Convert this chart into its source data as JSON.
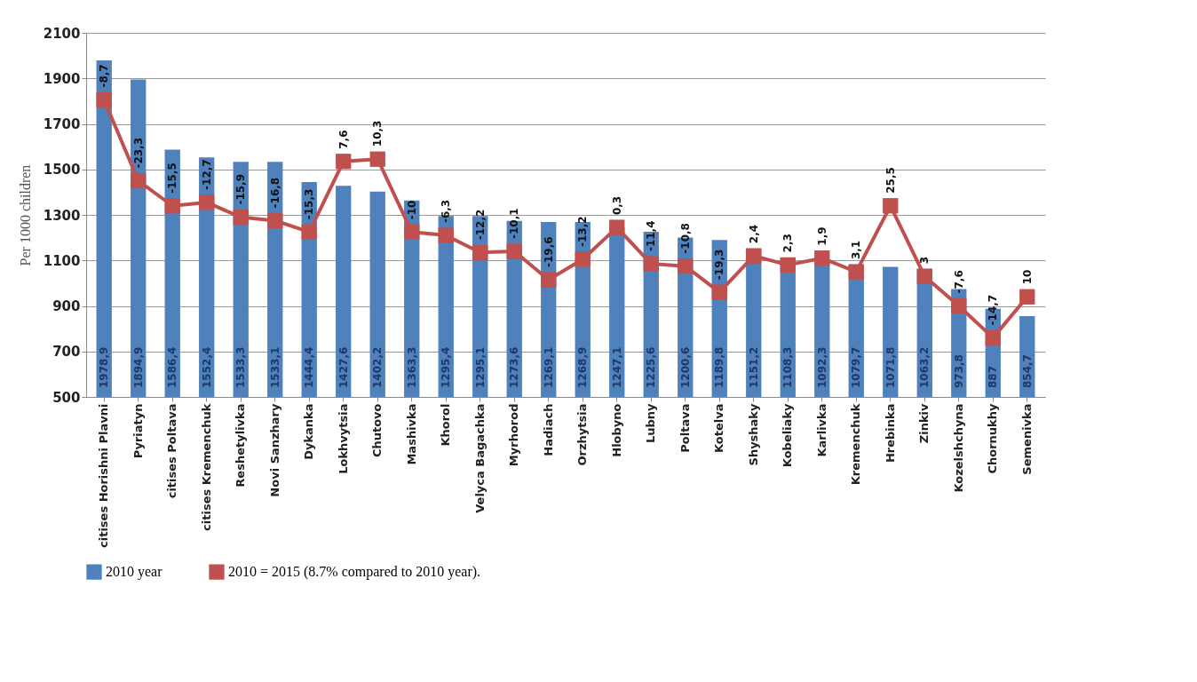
{
  "chart_data": {
    "type": "bar",
    "ylabel": "Per 1000 children",
    "categories": [
      "citises Horishni Plavni",
      "Pyriatyn",
      "citises Poltava",
      "citises Kremenchuk",
      "Reshetylivka",
      "Novi Sanzhary",
      "Dykanka",
      "Lokhvytsia",
      "Chutovo",
      "Mashivka",
      "Khorol",
      "Velyca Bagachka",
      "Myrhorod",
      "Hadiach",
      "Orzhytsia",
      "Hlobyno",
      "Lubny",
      "Poltava",
      "Kotelva",
      "Shyshaky",
      "Kobeliaky",
      "Karlivka",
      "Kremenchuk",
      "Hrebinka",
      "Zinkiv",
      "Kozelshchyna",
      "Chornukhy",
      "Semenivka"
    ],
    "series": [
      {
        "name": "2010 year",
        "color": "#4f81bd",
        "values": [
          1978.9,
          1894.9,
          1586.4,
          1552.4,
          1533.3,
          1533.1,
          1444.4,
          1427.6,
          1402.2,
          1363.3,
          1295.4,
          1295.1,
          1273.6,
          1269.1,
          1268.9,
          1247.1,
          1225.6,
          1200.6,
          1189.8,
          1151.2,
          1108.3,
          1092.3,
          1079.7,
          1071.8,
          1063.2,
          973.8,
          887,
          854.7
        ],
        "value_labels": [
          "1978,9",
          "1894,9",
          "1586,4",
          "1552,4",
          "1533,3",
          "1533,1",
          "1444,4",
          "1427,6",
          "1402,2",
          "1363,3",
          "1295,4",
          "1295,1",
          "1273,6",
          "1269,1",
          "1268,9",
          "1247,1",
          "1225,6",
          "1200,6",
          "1189,8",
          "1151,2",
          "1108,3",
          "1092,3",
          "1079,7",
          "1071,8",
          "1063,2",
          "973,8",
          "887",
          "854,7"
        ]
      },
      {
        "name": "2010 = 2015 (8.7% compared to 2010 year).",
        "type": "line",
        "color": "#c0504d",
        "marker": "square",
        "values": [
          1805,
          1450,
          1340,
          1355,
          1290,
          1275,
          1225,
          1535,
          1545,
          1225,
          1210,
          1135,
          1140,
          1015,
          1105,
          1245,
          1085,
          1075,
          960,
          1120,
          1080,
          1110,
          1050,
          1340,
          1030,
          900,
          760,
          940
        ]
      }
    ],
    "annotations": [
      {
        "text": "-8,7",
        "x": "citises Horishni Plavni",
        "y": 1805
      },
      {
        "text": "-23,3",
        "x": "Pyriatyn",
        "y": 1450
      },
      {
        "text": "-15,5",
        "x": "citises Poltava",
        "y": 1340
      },
      {
        "text": "-12,7",
        "x": "citises Kremenchuk",
        "y": 1355
      },
      {
        "text": "-15,9",
        "x": "Reshetylivka",
        "y": 1290
      },
      {
        "text": "-16,8",
        "x": "Novi Sanzhary",
        "y": 1275
      },
      {
        "text": "-15,3",
        "x": "Dykanka",
        "y": 1225
      },
      {
        "text": "7,6",
        "x": "Lokhvytsia",
        "y": 1535
      },
      {
        "text": "10,3",
        "x": "Chutovo",
        "y": 1545
      },
      {
        "text": "-10",
        "x": "Mashivka",
        "y": 1225
      },
      {
        "text": "-6,3",
        "x": "Khorol",
        "y": 1210
      },
      {
        "text": "-12,2",
        "x": "Velyca Bagachka",
        "y": 1135
      },
      {
        "text": "-10,1",
        "x": "Myrhorod",
        "y": 1140
      },
      {
        "text": "-19,6",
        "x": "Hadiach",
        "y": 1015
      },
      {
        "text": "-13,2",
        "x": "Orzhytsia",
        "y": 1105
      },
      {
        "text": "0,3",
        "x": "Hlobyno",
        "y": 1245
      },
      {
        "text": "-11,4",
        "x": "Lubny",
        "y": 1085
      },
      {
        "text": "-10,8",
        "x": "Poltava",
        "y": 1075
      },
      {
        "text": "-19,3",
        "x": "Kotelva",
        "y": 960
      },
      {
        "text": "2,4",
        "x": "Shyshaky",
        "y": 1120
      },
      {
        "text": "2,3",
        "x": "Kobeliaky",
        "y": 1080
      },
      {
        "text": "1,9",
        "x": "Karlivka",
        "y": 1110
      },
      {
        "text": "3,1",
        "x": "Kremenchuk",
        "y": 1050
      },
      {
        "text": "25,5",
        "x": "Hrebinka",
        "y": 1340
      },
      {
        "text": "3",
        "x": "Zinkiv",
        "y": 1030
      },
      {
        "text": "-7,6",
        "x": "Kozelshchyna",
        "y": 900
      },
      {
        "text": "-14,7",
        "x": "Chornukhy",
        "y": 760
      },
      {
        "text": "10",
        "x": "Semenivka",
        "y": 940
      }
    ],
    "ylim": [
      500,
      2100
    ],
    "yticks": [
      500,
      700,
      900,
      1100,
      1300,
      1500,
      1700,
      1900,
      2100
    ],
    "grid": "y",
    "legend": "bottom"
  }
}
